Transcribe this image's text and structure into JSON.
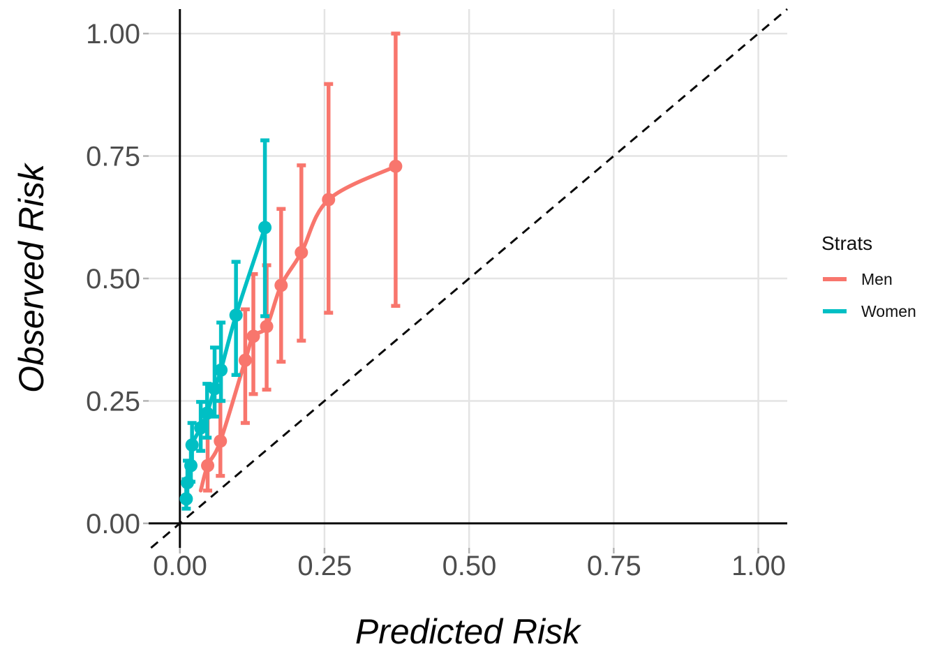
{
  "figure": {
    "background": "#ffffff",
    "x_axis": {
      "title": "Predicted Risk",
      "tick_labels": [
        "0.00",
        "0.25",
        "0.50",
        "0.75",
        "1.00"
      ],
      "tick_values": [
        0,
        0.25,
        0.5,
        0.75,
        1.0
      ]
    },
    "y_axis": {
      "title": "Observed Risk",
      "tick_labels": [
        "0.00",
        "0.25",
        "0.50",
        "0.75",
        "1.00"
      ],
      "tick_values": [
        0,
        0.25,
        0.5,
        0.75,
        1.0
      ]
    },
    "legend": {
      "title": "Strats",
      "entries": [
        {
          "label": "Men",
          "color": "#f8766d"
        },
        {
          "label": "Women",
          "color": "#00bfc4"
        }
      ]
    },
    "colors": {
      "grid": "#e4e4e4",
      "tick_mark": "#b3b3b3",
      "axis_line": "#0a0a0a",
      "identity_line": "#0a0a0a"
    }
  },
  "chart_data": {
    "type": "scatter",
    "title": "",
    "xlabel": "Predicted Risk",
    "ylabel": "Observed Risk",
    "xlim": [
      -0.054,
      1.05
    ],
    "ylim": [
      -0.05,
      1.05
    ],
    "grid": true,
    "legend_position": "right",
    "legend_title": "Strats",
    "reference_line": "identity y=x, black dashed",
    "description": "Calibration plot: observed vs predicted risk by sex strata with smoothed curves, grouped risk-decile points and vertical 95% CI error bars",
    "series": [
      {
        "name": "Men",
        "color": "#f8766d",
        "line_lead_in": {
          "x": 0.036,
          "y": 0.067
        },
        "points": [
          {
            "x": 0.048,
            "y": 0.118,
            "ci_low": 0.067,
            "ci_high": 0.225
          },
          {
            "x": 0.07,
            "y": 0.168,
            "ci_low": 0.097,
            "ci_high": 0.25
          },
          {
            "x": 0.113,
            "y": 0.333,
            "ci_low": 0.205,
            "ci_high": 0.437
          },
          {
            "x": 0.127,
            "y": 0.382,
            "ci_low": 0.264,
            "ci_high": 0.509
          },
          {
            "x": 0.15,
            "y": 0.402,
            "ci_low": 0.273,
            "ci_high": 0.527
          },
          {
            "x": 0.175,
            "y": 0.486,
            "ci_low": 0.33,
            "ci_high": 0.642
          },
          {
            "x": 0.21,
            "y": 0.553,
            "ci_low": 0.373,
            "ci_high": 0.731
          },
          {
            "x": 0.257,
            "y": 0.661,
            "ci_low": 0.43,
            "ci_high": 0.897
          },
          {
            "x": 0.373,
            "y": 0.729,
            "ci_low": 0.444,
            "ci_high": 1.0
          }
        ]
      },
      {
        "name": "Women",
        "color": "#00bfc4",
        "line_lead_in": null,
        "points": [
          {
            "x": 0.011,
            "y": 0.05,
            "ci_low": 0.03,
            "ci_high": 0.09
          },
          {
            "x": 0.013,
            "y": 0.083,
            "ci_low": 0.052,
            "ci_high": 0.128
          },
          {
            "x": 0.019,
            "y": 0.118,
            "ci_low": 0.085,
            "ci_high": 0.163
          },
          {
            "x": 0.021,
            "y": 0.16,
            "ci_low": 0.118,
            "ci_high": 0.205
          },
          {
            "x": 0.036,
            "y": 0.195,
            "ci_low": 0.148,
            "ci_high": 0.248
          },
          {
            "x": 0.047,
            "y": 0.225,
            "ci_low": 0.175,
            "ci_high": 0.285
          },
          {
            "x": 0.06,
            "y": 0.275,
            "ci_low": 0.218,
            "ci_high": 0.359
          },
          {
            "x": 0.071,
            "y": 0.313,
            "ci_low": 0.25,
            "ci_high": 0.41
          },
          {
            "x": 0.097,
            "y": 0.425,
            "ci_low": 0.303,
            "ci_high": 0.534
          },
          {
            "x": 0.147,
            "y": 0.604,
            "ci_low": 0.423,
            "ci_high": 0.782
          }
        ]
      }
    ]
  }
}
